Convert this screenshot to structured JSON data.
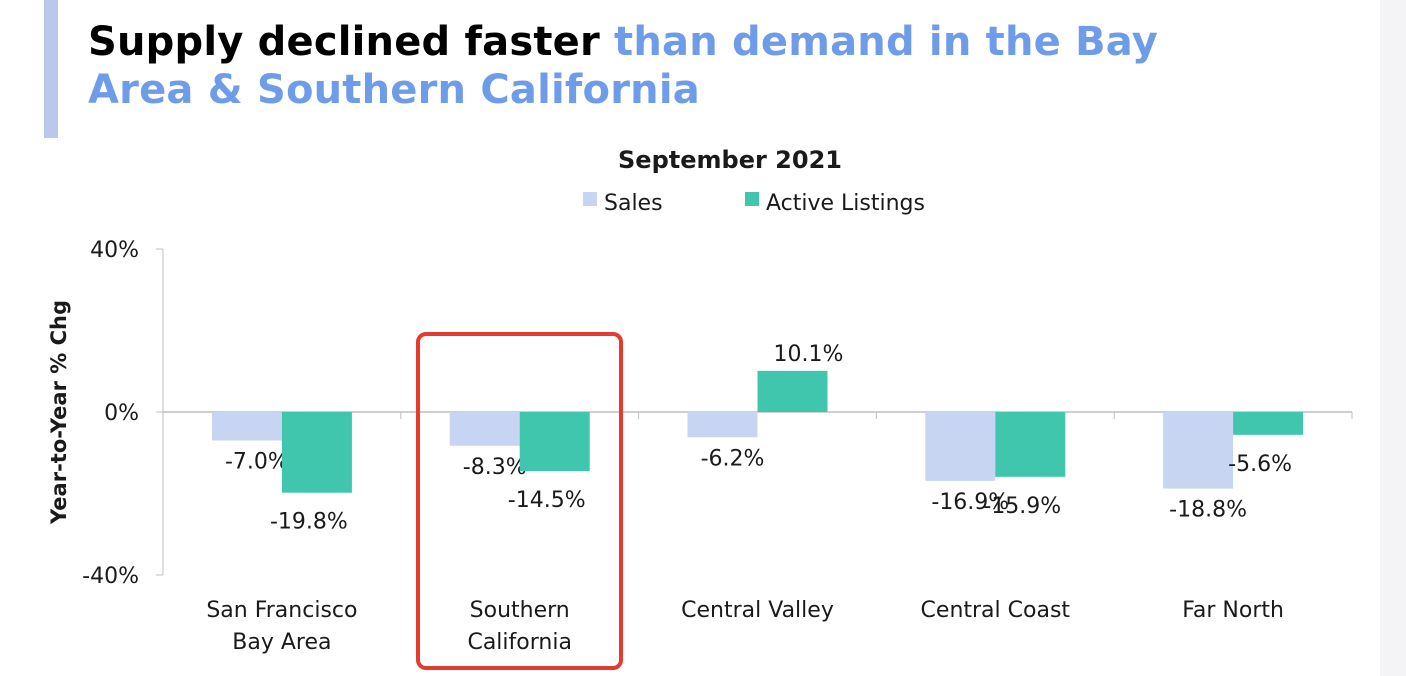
{
  "headline": {
    "part_dark": "Supply declined faster",
    "part_light": "than demand in the Bay Area & Southern California"
  },
  "colors": {
    "sales": "#c7d5f3",
    "active_listings": "#3fc6ac",
    "highlight_box": "#e53a2e",
    "headline_accent": "#6f9ce8"
  },
  "chart_data": {
    "type": "bar",
    "title": "September 2021",
    "ylabel": "Year-to-Year % Chg",
    "xlabel": "",
    "ylim": [
      -40,
      40
    ],
    "yticks": [
      "40%",
      "0%",
      "-40%"
    ],
    "ytick_values": [
      40,
      0,
      -40
    ],
    "categories": [
      "San Francisco Bay Area",
      "Southern California",
      "Central Valley",
      "Central Coast",
      "Far North"
    ],
    "category_lines": [
      [
        "San Francisco",
        "Bay Area"
      ],
      [
        "Southern",
        "California"
      ],
      [
        "Central Valley"
      ],
      [
        "Central Coast"
      ],
      [
        "Far North"
      ]
    ],
    "series": [
      {
        "name": "Sales",
        "values": [
          -7.0,
          -8.3,
          -6.2,
          -16.9,
          -18.8
        ],
        "labels": [
          "-7.0%",
          "-8.3%",
          "-6.2%",
          "-16.9%",
          "-18.8%"
        ]
      },
      {
        "name": "Active Listings",
        "values": [
          -19.8,
          -14.5,
          10.1,
          -15.9,
          -5.6
        ],
        "labels": [
          "-19.8%",
          "-14.5%",
          "10.1%",
          "-15.9%",
          "-5.6%"
        ]
      }
    ],
    "legend_position": "top-center",
    "highlighted_category": "Southern California",
    "grid": false
  }
}
